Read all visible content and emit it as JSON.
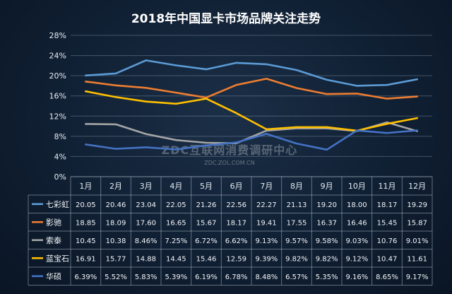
{
  "chart_data": {
    "type": "line",
    "title": "2018年中国显卡市场品牌关注走势",
    "categories": [
      "1月",
      "2月",
      "3月",
      "4月",
      "5月",
      "6月",
      "7月",
      "8月",
      "9月",
      "10月",
      "11月",
      "12月"
    ],
    "ylim": [
      0,
      28
    ],
    "yticks": [
      "0%",
      "4%",
      "8%",
      "12%",
      "16%",
      "20%",
      "24%",
      "28%"
    ],
    "grid": true,
    "legend": "table-below",
    "series": [
      {
        "name": "七彩虹",
        "color": "#5b9bd5",
        "values": [
          20.05,
          20.46,
          23.04,
          22.05,
          21.26,
          22.56,
          22.27,
          21.13,
          19.2,
          18.0,
          18.17,
          19.29
        ],
        "labels": [
          "20.05",
          "20.46",
          "23.04",
          "22.05",
          "21.26",
          "22.56",
          "22.27",
          "21.13",
          "19.20",
          "18.00",
          "18.17",
          "19.29"
        ]
      },
      {
        "name": "影驰",
        "color": "#ed7d31",
        "values": [
          18.85,
          18.09,
          17.6,
          16.65,
          15.67,
          18.17,
          19.41,
          17.55,
          16.37,
          16.46,
          15.45,
          15.87
        ],
        "labels": [
          "18.85",
          "18.09",
          "17.60",
          "16.65",
          "15.67",
          "18.17",
          "19.41",
          "17.55",
          "16.37",
          "16.46",
          "15.45",
          "15.87"
        ]
      },
      {
        "name": "索泰",
        "color": "#a5a5a5",
        "values": [
          10.45,
          10.38,
          8.46,
          7.25,
          6.72,
          6.62,
          9.13,
          9.57,
          9.58,
          9.03,
          10.76,
          9.01
        ],
        "labels": [
          "10.45",
          "10.38",
          "8.46%",
          "7.25%",
          "6.72%",
          "6.62%",
          "9.13%",
          "9.57%",
          "9.58%",
          "9.03%",
          "10.76",
          "9.01%"
        ]
      },
      {
        "name": "蓝宝石",
        "color": "#ffc000",
        "values": [
          16.91,
          15.77,
          14.88,
          14.45,
          15.46,
          12.59,
          9.39,
          9.82,
          9.82,
          9.12,
          10.47,
          11.61
        ],
        "labels": [
          "16.91",
          "15.77",
          "14.88",
          "14.45",
          "15.46",
          "12.59",
          "9.39%",
          "9.82%",
          "9.82%",
          "9.12%",
          "10.47",
          "11.61"
        ]
      },
      {
        "name": "华硕",
        "color": "#4472c4",
        "values": [
          6.39,
          5.52,
          5.83,
          5.39,
          6.19,
          6.78,
          8.48,
          6.57,
          5.35,
          9.16,
          8.65,
          9.17
        ],
        "labels": [
          "6.39%",
          "5.52%",
          "5.83%",
          "5.39%",
          "6.19%",
          "6.78%",
          "8.48%",
          "6.57%",
          "5.35%",
          "9.16%",
          "8.65%",
          "9.17%"
        ]
      }
    ]
  },
  "watermark": {
    "main": "ZDC互联网消费调研中心",
    "sub": "ZDC.ZOL.COM.CN"
  }
}
